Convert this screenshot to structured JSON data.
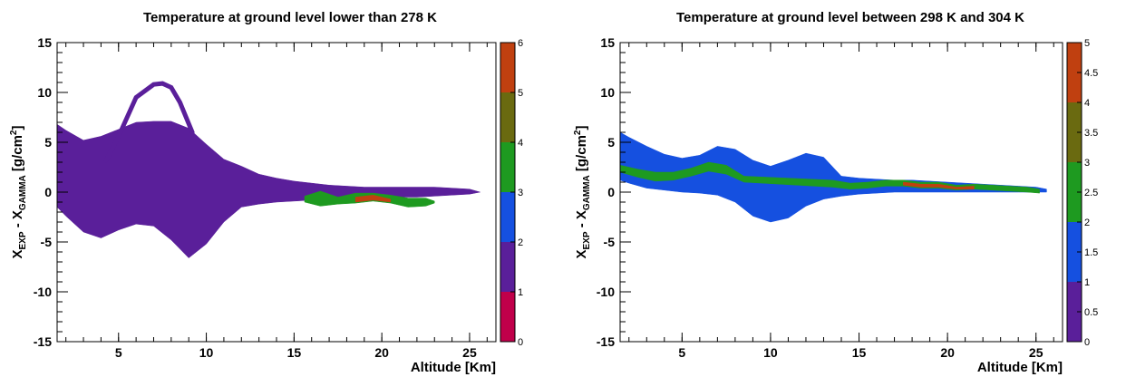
{
  "chart_data": [
    {
      "type": "heatmap",
      "title": "Temperature at ground level lower than 278 K",
      "xlabel": "Altitude [Km]",
      "ylabel": {
        "main": "X",
        "sub1": "EXP",
        "mid": " - X",
        "sub2": "GAMMA",
        "unit_pre": "  [g/cm",
        "unit_sup": "2",
        "unit_post": "]"
      },
      "xlim": [
        1.5,
        26.5
      ],
      "ylim": [
        -15,
        15
      ],
      "xticks": [
        "5",
        "10",
        "15",
        "20",
        "25"
      ],
      "yticks": [
        "-15",
        "-10",
        "-5",
        "0",
        "5",
        "10",
        "15"
      ],
      "colorbar": {
        "range": [
          0,
          6
        ],
        "labels": [
          "0",
          "1",
          "2",
          "3",
          "4",
          "5",
          "6"
        ],
        "colors": [
          "#c0004a",
          "#5a1f9a",
          "#1550e0",
          "#1e9a20",
          "#6a6a10",
          "#c04010"
        ]
      },
      "fill_level_1": {
        "x": [
          1.5,
          2,
          3,
          4,
          5,
          6,
          7,
          8,
          9,
          10,
          11,
          12,
          13,
          14,
          15,
          16,
          17,
          18,
          19,
          20,
          21,
          22,
          23,
          24,
          25,
          25.6
        ],
        "upper": [
          6.8,
          6.2,
          5.2,
          5.6,
          6.3,
          7.0,
          7.1,
          7.1,
          6.4,
          4.8,
          3.3,
          2.6,
          1.8,
          1.4,
          1.1,
          0.9,
          0.7,
          0.6,
          0.5,
          0.5,
          0.5,
          0.5,
          0.5,
          0.4,
          0.3,
          0.0
        ],
        "lower": [
          -1.5,
          -2.4,
          -4.0,
          -4.6,
          -3.8,
          -3.2,
          -3.4,
          -4.8,
          -6.6,
          -5.2,
          -3.0,
          -1.5,
          -1.2,
          -1.0,
          -0.9,
          -0.8,
          -0.8,
          -0.7,
          -0.6,
          -0.6,
          -0.5,
          -0.5,
          -0.4,
          -0.3,
          -0.2,
          0.0
        ]
      },
      "ridge_level_1": {
        "x": [
          4.3,
          5,
          6,
          7,
          7.5,
          8,
          8.5,
          9.2
        ],
        "y": [
          3.2,
          5.6,
          9.5,
          10.8,
          10.9,
          10.5,
          9.0,
          6.0
        ]
      },
      "fill_level_3": {
        "x": [
          15.6,
          16.5,
          17.5,
          18.5,
          19.5,
          20.5,
          21.5,
          22.5,
          23.0
        ],
        "upper": [
          -0.4,
          0.1,
          -0.5,
          -0.1,
          -0.1,
          -0.3,
          -0.6,
          -0.6,
          -0.9
        ],
        "lower": [
          -1.0,
          -1.4,
          -1.2,
          -1.1,
          -0.9,
          -1.1,
          -1.5,
          -1.4,
          -1.1
        ]
      },
      "fill_level_4": {
        "x": [
          18.5,
          19.5,
          20.5
        ],
        "upper": [
          -0.5,
          -0.3,
          -0.7
        ],
        "lower": [
          -1.0,
          -0.8,
          -1.0
        ]
      }
    },
    {
      "type": "heatmap",
      "title": "Temperature at ground level between 298 K and 304 K",
      "xlabel": "Altitude [Km]",
      "ylabel": {
        "main": "X",
        "sub1": "EXP",
        "mid": " - X",
        "sub2": "GAMMA",
        "unit_pre": "  [g/cm",
        "unit_sup": "2",
        "unit_post": "]"
      },
      "xlim": [
        1.5,
        26.5
      ],
      "ylim": [
        -15,
        15
      ],
      "xticks": [
        "5",
        "10",
        "15",
        "20",
        "25"
      ],
      "yticks": [
        "-15",
        "-10",
        "-5",
        "0",
        "5",
        "10",
        "15"
      ],
      "colorbar": {
        "range": [
          0,
          5
        ],
        "labels": [
          "0",
          "0.5",
          "1",
          "1.5",
          "2",
          "2.5",
          "3",
          "3.5",
          "4",
          "4.5",
          "5"
        ],
        "colors": [
          "#5a1f9a",
          "#1550e0",
          "#1e9a20",
          "#6a6a10",
          "#c04010"
        ]
      },
      "fill_level_2": {
        "x": [
          1.5,
          2,
          3,
          4,
          5,
          6,
          7,
          8,
          9,
          10,
          11,
          12,
          13,
          14,
          15,
          16,
          17,
          18,
          19,
          20,
          21,
          22,
          23,
          24,
          25,
          25.6
        ],
        "upper": [
          6.0,
          5.5,
          4.6,
          3.8,
          3.4,
          3.7,
          4.6,
          4.3,
          3.2,
          2.6,
          3.2,
          3.9,
          3.5,
          1.6,
          1.4,
          1.3,
          1.2,
          1.2,
          1.1,
          1.0,
          0.9,
          0.8,
          0.7,
          0.6,
          0.5,
          0.3
        ],
        "lower": [
          1.2,
          0.9,
          0.4,
          0.2,
          0.0,
          -0.1,
          -0.3,
          -1.0,
          -2.4,
          -3.0,
          -2.6,
          -1.4,
          -0.7,
          -0.4,
          -0.2,
          -0.1,
          0.0,
          0.0,
          0.0,
          0.0,
          0.0,
          0.0,
          0.0,
          0.0,
          0.0,
          0.0
        ]
      },
      "fill_level_3": {
        "x": [
          1.5,
          2.5,
          3.5,
          4.5,
          5.5,
          6.5,
          7.5,
          8.5,
          13.5,
          14.5,
          15.5,
          16.5,
          17.5,
          18.5,
          19.5,
          20.5,
          21.5,
          22.5,
          23.5,
          24.5,
          25.2
        ],
        "upper": [
          2.7,
          2.3,
          2.0,
          2.0,
          2.4,
          3.0,
          2.7,
          1.6,
          1.2,
          0.9,
          1.0,
          1.2,
          1.2,
          1.0,
          1.0,
          0.7,
          0.8,
          0.7,
          0.6,
          0.5,
          0.3
        ],
        "lower": [
          2.0,
          1.5,
          1.1,
          1.2,
          1.6,
          2.1,
          1.8,
          1.0,
          0.5,
          0.3,
          0.4,
          0.6,
          0.6,
          0.4,
          0.4,
          0.2,
          0.3,
          0.2,
          0.1,
          0.0,
          -0.1
        ]
      },
      "fill_level_4": {
        "x": [
          17.5,
          18.5,
          19.5,
          20.5,
          21.5
        ],
        "upper": [
          1.0,
          0.8,
          0.8,
          0.5,
          0.6
        ],
        "lower": [
          0.7,
          0.5,
          0.5,
          0.3,
          0.3
        ]
      }
    }
  ]
}
